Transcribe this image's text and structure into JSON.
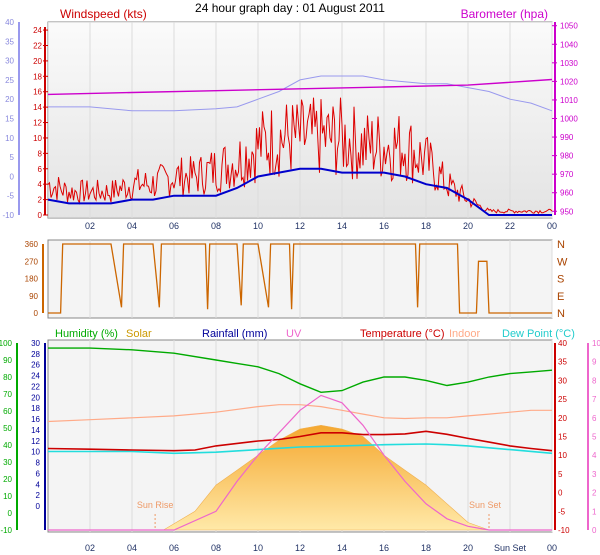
{
  "title": "24 hour graph day : 01 August 2011",
  "x_ticks": [
    "02",
    "04",
    "06",
    "08",
    "10",
    "12",
    "14",
    "16",
    "18",
    "20",
    "22",
    "00"
  ],
  "bottom_x_ticks": [
    "02",
    "04",
    "06",
    "08",
    "10",
    "12",
    "14",
    "16",
    "18",
    "20",
    "Sun Set",
    "00"
  ],
  "colors": {
    "windspeed": "#dd0000",
    "avg_wind": "#0000cc",
    "gust_left_axis": "#9999ee",
    "barometer": "#cc00cc",
    "barometer_light": "#aab0f0",
    "direction": "#cc6600",
    "humidity": "#00aa00",
    "solar": "#ffcc66",
    "rainfall": "#000099",
    "uv": "#ee66cc",
    "temperature": "#cc0000",
    "indoor": "#ffaa88",
    "dewpoint": "#22dddd"
  },
  "chart_data": [
    {
      "type": "line",
      "id": "wind-pressure",
      "labels": {
        "left": "Windspeed (kts)",
        "right": "Barometer (hpa)"
      },
      "left_axis_outer": {
        "ticks": [
          40,
          35,
          30,
          25,
          20,
          15,
          10,
          5,
          0,
          -5,
          -10
        ]
      },
      "left_axis_inner": {
        "ticks": [
          24,
          22,
          20,
          18,
          16,
          14,
          12,
          10,
          8,
          6,
          4,
          2,
          0
        ],
        "ylim": [
          0,
          25
        ]
      },
      "right_axis": {
        "ticks": [
          1050,
          1040,
          1030,
          1020,
          1010,
          1000,
          990,
          980,
          970,
          960,
          950
        ],
        "ylim": [
          948,
          1052
        ]
      },
      "xlim": [
        0,
        24
      ],
      "series": [
        {
          "key": "windspeed",
          "axis": "inner",
          "values": [
            [
              0,
              4
            ],
            [
              1,
              3
            ],
            [
              2,
              3
            ],
            [
              3,
              3
            ],
            [
              4,
              4
            ],
            [
              5,
              4
            ],
            [
              6,
              5
            ],
            [
              7,
              5
            ],
            [
              8,
              6
            ],
            [
              9,
              7
            ],
            [
              10,
              9
            ],
            [
              11,
              10
            ],
            [
              12,
              10
            ],
            [
              13,
              10
            ],
            [
              14,
              10
            ],
            [
              15,
              9
            ],
            [
              16,
              9
            ],
            [
              17,
              9
            ],
            [
              18,
              7
            ],
            [
              19,
              4
            ],
            [
              20,
              2
            ],
            [
              21,
              0.5
            ],
            [
              22,
              0.5
            ],
            [
              23,
              0.5
            ],
            [
              24,
              0.5
            ]
          ]
        },
        {
          "key": "avg_wind",
          "axis": "inner",
          "values": [
            [
              0,
              2
            ],
            [
              1,
              1.5
            ],
            [
              2,
              1.5
            ],
            [
              3,
              1.5
            ],
            [
              4,
              2
            ],
            [
              5,
              2
            ],
            [
              6,
              2.5
            ],
            [
              7,
              2.5
            ],
            [
              8,
              2.5
            ],
            [
              9,
              3.5
            ],
            [
              10,
              5
            ],
            [
              11,
              5.5
            ],
            [
              12,
              6
            ],
            [
              13,
              6
            ],
            [
              14,
              5.5
            ],
            [
              15,
              5.5
            ],
            [
              16,
              5.5
            ],
            [
              17,
              5
            ],
            [
              18,
              4
            ],
            [
              19,
              3.5
            ],
            [
              20,
              2
            ],
            [
              21,
              0
            ],
            [
              22,
              0
            ],
            [
              23,
              0
            ],
            [
              24,
              0
            ]
          ]
        },
        {
          "key": "gust_left_axis",
          "axis": "outer",
          "values": [
            [
              0,
              18
            ],
            [
              2,
              18
            ],
            [
              4,
              17
            ],
            [
              6,
              17
            ],
            [
              8,
              17.5
            ],
            [
              9,
              18
            ],
            [
              10,
              20
            ],
            [
              11,
              22
            ],
            [
              12,
              25
            ],
            [
              13,
              26
            ],
            [
              14,
              26
            ],
            [
              15,
              26
            ],
            [
              16,
              25
            ],
            [
              18,
              24
            ],
            [
              19,
              24
            ],
            [
              20,
              23
            ],
            [
              21,
              22
            ],
            [
              22,
              20
            ],
            [
              23,
              19
            ],
            [
              24,
              17
            ]
          ]
        },
        {
          "key": "barometer",
          "axis": "right",
          "values": [
            [
              0,
              1013
            ],
            [
              4,
              1014
            ],
            [
              8,
              1015
            ],
            [
              12,
              1016
            ],
            [
              16,
              1017
            ],
            [
              20,
              1018
            ],
            [
              24,
              1021
            ]
          ]
        }
      ]
    },
    {
      "type": "line",
      "id": "wind-direction",
      "left_axis": {
        "ticks": [
          360,
          270,
          180,
          90,
          0
        ],
        "ylim": [
          0,
          360
        ]
      },
      "right_axis": {
        "ticks": [
          "N",
          "W",
          "S",
          "E",
          "N"
        ]
      },
      "xlim": [
        0,
        24
      ],
      "series": [
        {
          "key": "direction",
          "values": [
            [
              0,
              0
            ],
            [
              0.6,
              0
            ],
            [
              0.7,
              360
            ],
            [
              2,
              360
            ],
            [
              3,
              360
            ],
            [
              3.5,
              30
            ],
            [
              3.6,
              360
            ],
            [
              5,
              360
            ],
            [
              5.3,
              30
            ],
            [
              5.4,
              360
            ],
            [
              7.5,
              360
            ],
            [
              7.6,
              20
            ],
            [
              7.7,
              360
            ],
            [
              9,
              360
            ],
            [
              9.2,
              40
            ],
            [
              9.3,
              360
            ],
            [
              10,
              360
            ],
            [
              10.5,
              30
            ],
            [
              10.6,
              360
            ],
            [
              11.5,
              360
            ],
            [
              11.6,
              20
            ],
            [
              11.7,
              360
            ],
            [
              17.5,
              360
            ],
            [
              17.6,
              30
            ],
            [
              17.7,
              360
            ],
            [
              19.5,
              360
            ],
            [
              19.6,
              0
            ],
            [
              20.4,
              0
            ],
            [
              20.5,
              270
            ],
            [
              20.9,
              270
            ],
            [
              21,
              0
            ],
            [
              24,
              0
            ]
          ]
        }
      ]
    },
    {
      "type": "line",
      "id": "humidity-temp",
      "labels": {
        "humidity": "Humidity (%)",
        "solar": "Solar",
        "rainfall": "Rainfall (mm)",
        "uv": "UV",
        "temperature": "Temperature (°C)",
        "indoor": "Indoor",
        "dewpoint": "Dew Point (°C)"
      },
      "annotations": {
        "sun_rise": "Sun Rise",
        "sun_set": "Sun Set",
        "sun_rise_x": 5.1,
        "sun_set_x": 21.0
      },
      "left_axis_outer": {
        "ticks": [
          100,
          90,
          80,
          70,
          60,
          50,
          40,
          30,
          20,
          10,
          0,
          -10
        ],
        "ylim": [
          -10,
          100
        ]
      },
      "left_axis_inner": {
        "ticks": [
          30,
          28,
          26,
          24,
          22,
          20,
          18,
          16,
          14,
          12,
          10,
          8,
          6,
          4,
          2,
          0
        ]
      },
      "right_axis_inner": {
        "ticks": [
          40,
          35,
          30,
          25,
          20,
          15,
          10,
          5,
          0,
          -5,
          -10
        ],
        "ylim": [
          -10,
          40
        ]
      },
      "right_axis_outer": {
        "ticks": [
          10,
          9,
          8,
          7,
          6,
          5,
          4,
          3,
          2,
          1,
          0
        ]
      },
      "xlim": [
        0,
        24
      ],
      "series": [
        {
          "key": "humidity",
          "axis": "left",
          "values": [
            [
              0,
              97
            ],
            [
              2,
              97
            ],
            [
              4,
              96
            ],
            [
              6,
              94
            ],
            [
              8,
              90
            ],
            [
              9,
              88
            ],
            [
              10,
              86
            ],
            [
              11,
              82
            ],
            [
              12,
              76
            ],
            [
              13,
              71
            ],
            [
              14,
              72
            ],
            [
              15,
              77
            ],
            [
              16,
              80
            ],
            [
              17,
              80
            ],
            [
              18,
              78
            ],
            [
              19,
              75
            ],
            [
              20,
              77
            ],
            [
              21,
              80
            ],
            [
              22,
              82
            ],
            [
              23,
              83
            ],
            [
              24,
              84
            ]
          ]
        },
        {
          "key": "solar",
          "axis": "right_inner",
          "values": [
            [
              0,
              -10
            ],
            [
              5.5,
              -10
            ],
            [
              7,
              -5
            ],
            [
              8,
              2
            ],
            [
              9,
              6
            ],
            [
              10,
              10
            ],
            [
              11,
              14
            ],
            [
              12,
              17
            ],
            [
              13,
              18
            ],
            [
              14,
              17
            ],
            [
              15,
              15
            ],
            [
              16,
              10
            ],
            [
              17,
              6
            ],
            [
              18,
              2
            ],
            [
              19,
              -3
            ],
            [
              20,
              -8
            ],
            [
              21,
              -10
            ],
            [
              24,
              -10
            ]
          ]
        },
        {
          "key": "uv",
          "axis": "right_inner",
          "values": [
            [
              0,
              -10
            ],
            [
              6,
              -10
            ],
            [
              8,
              -5
            ],
            [
              9,
              3
            ],
            [
              10,
              10
            ],
            [
              11,
              16
            ],
            [
              12,
              22
            ],
            [
              13,
              26
            ],
            [
              14,
              24
            ],
            [
              15,
              18
            ],
            [
              16,
              10
            ],
            [
              17,
              3
            ],
            [
              18,
              -3
            ],
            [
              19,
              -7
            ],
            [
              20,
              -9
            ],
            [
              21,
              -10
            ],
            [
              24,
              -10
            ]
          ]
        },
        {
          "key": "temperature",
          "axis": "right_inner",
          "values": [
            [
              0,
              11.8
            ],
            [
              2,
              11.6
            ],
            [
              4,
              11.4
            ],
            [
              6,
              11.2
            ],
            [
              7,
              11.4
            ],
            [
              8,
              12.5
            ],
            [
              10,
              13.8
            ],
            [
              11,
              14.2
            ],
            [
              12,
              15
            ],
            [
              13,
              16
            ],
            [
              14,
              16
            ],
            [
              15,
              15.5
            ],
            [
              16,
              15.5
            ],
            [
              17,
              15.7
            ],
            [
              18,
              16.4
            ],
            [
              19,
              15.6
            ],
            [
              20,
              14.5
            ],
            [
              21,
              13.5
            ],
            [
              22,
              12.5
            ],
            [
              23,
              11.8
            ],
            [
              24,
              11.2
            ]
          ]
        },
        {
          "key": "indoor",
          "axis": "right_inner",
          "values": [
            [
              0,
              19
            ],
            [
              2,
              19.5
            ],
            [
              4,
              20
            ],
            [
              6,
              20.5
            ],
            [
              8,
              21.5
            ],
            [
              10,
              23
            ],
            [
              11,
              23.5
            ],
            [
              12,
              23.5
            ],
            [
              13,
              23
            ],
            [
              14,
              22
            ],
            [
              15,
              21
            ],
            [
              16,
              20
            ],
            [
              17,
              19.8
            ],
            [
              18,
              20
            ],
            [
              19,
              20
            ],
            [
              20,
              20.5
            ],
            [
              21,
              21
            ],
            [
              22,
              21.5
            ],
            [
              23,
              22
            ],
            [
              24,
              22
            ]
          ]
        },
        {
          "key": "dewpoint",
          "axis": "right_inner",
          "values": [
            [
              0,
              11
            ],
            [
              2,
              11
            ],
            [
              4,
              11
            ],
            [
              6,
              10.5
            ],
            [
              8,
              10.8
            ],
            [
              10,
              11.5
            ],
            [
              12,
              12.2
            ],
            [
              14,
              12.5
            ],
            [
              16,
              12.8
            ],
            [
              18,
              13
            ],
            [
              19,
              12.8
            ],
            [
              20,
              12.5
            ],
            [
              22,
              11.5
            ],
            [
              24,
              10.5
            ]
          ]
        }
      ]
    }
  ]
}
